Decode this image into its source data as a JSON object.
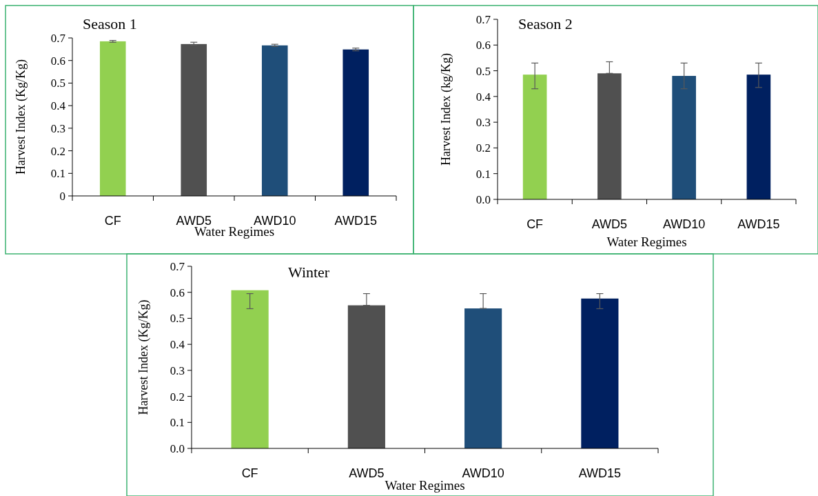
{
  "chart_data": [
    {
      "type": "bar",
      "title": "Season 1",
      "xlabel": "Water Regimes",
      "ylabel": "Harvest Index (Kg/Kg)",
      "categories": [
        "CF",
        "AWD5",
        "AWD10",
        "AWD15"
      ],
      "values": [
        0.685,
        0.673,
        0.667,
        0.649
      ],
      "colors": [
        "#92d050",
        "#505050",
        "#1f4e79",
        "#002060"
      ],
      "errors": [
        0.004,
        [
          0.668,
          0.681
        ],
        0.005,
        0.006
      ],
      "ylim": [
        0,
        0.7
      ],
      "yticks": [
        0,
        0.1,
        0.2,
        0.3,
        0.4,
        0.5,
        0.6,
        0.7
      ]
    },
    {
      "type": "bar",
      "title": "Season 2",
      "xlabel": "Water Regimes",
      "ylabel": "Harvest Index (kg/Kg)",
      "categories": [
        "CF",
        "AWD5",
        "AWD10",
        "AWD15"
      ],
      "values": [
        0.485,
        0.49,
        0.48,
        0.485
      ],
      "colors": [
        "#92d050",
        "#505050",
        "#1f4e79",
        "#002060"
      ],
      "errors": [
        [
          0.43,
          0.53
        ],
        [
          0.49,
          0.535
        ],
        [
          0.43,
          0.53
        ],
        [
          0.435,
          0.53
        ]
      ],
      "ylim": [
        0,
        0.7
      ],
      "yticks": [
        {
          "value": 0,
          "label": "0.0"
        },
        0.1,
        0.2,
        0.3,
        0.4,
        0.5,
        0.6,
        0.7
      ]
    },
    {
      "type": "bar",
      "title": "Winter",
      "xlabel": "Water  Regimes",
      "ylabel": "Harvest Index (Kg/Kg)",
      "categories": [
        "CF",
        "AWD5",
        "AWD10",
        "AWD15"
      ],
      "values": [
        0.608,
        0.55,
        0.538,
        0.576
      ],
      "colors": [
        "#92d050",
        "#505050",
        "#1f4e79",
        "#002060"
      ],
      "errors": [
        [
          0.537,
          0.595
        ],
        [
          0.55,
          0.595
        ],
        [
          0.538,
          0.595
        ],
        [
          0.537,
          0.595
        ]
      ],
      "ylim": [
        0,
        0.7
      ],
      "yticks": [
        {
          "value": 0,
          "label": "0.0"
        },
        0.1,
        0.2,
        0.3,
        0.4,
        0.5,
        0.6,
        0.7
      ]
    }
  ]
}
